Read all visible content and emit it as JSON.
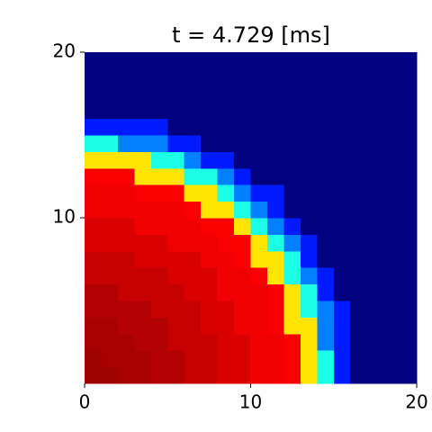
{
  "chart_data": {
    "type": "heatmap",
    "title": "t = 4.729 [ms]",
    "colormap": "jet",
    "clim": [
      0,
      100
    ],
    "xlim": [
      0,
      20
    ],
    "ylim": [
      0,
      20
    ],
    "xticks": [
      0,
      10,
      20
    ],
    "yticks": [
      10,
      20
    ],
    "z": [
      [
        97,
        97,
        96,
        96,
        95,
        95,
        93,
        93,
        91,
        91,
        89,
        89,
        88,
        65,
        40,
        15,
        0,
        0,
        0,
        0
      ],
      [
        97,
        96,
        96,
        96,
        95,
        95,
        93,
        93,
        91,
        91,
        89,
        89,
        88,
        65,
        40,
        15,
        0,
        0,
        0,
        0
      ],
      [
        96,
        96,
        96,
        95,
        95,
        93,
        93,
        93,
        91,
        91,
        89,
        89,
        88,
        65,
        25,
        15,
        0,
        0,
        0,
        0
      ],
      [
        96,
        96,
        95,
        95,
        95,
        93,
        93,
        91,
        91,
        89,
        89,
        88,
        65,
        65,
        25,
        15,
        0,
        0,
        0,
        0
      ],
      [
        95,
        95,
        95,
        95,
        93,
        93,
        93,
        91,
        91,
        89,
        89,
        88,
        65,
        40,
        25,
        15,
        0,
        0,
        0,
        0
      ],
      [
        95,
        95,
        93,
        93,
        93,
        93,
        91,
        91,
        89,
        89,
        89,
        88,
        65,
        40,
        15,
        0,
        0,
        0,
        0,
        0
      ],
      [
        93,
        93,
        93,
        93,
        93,
        91,
        91,
        91,
        89,
        89,
        88,
        65,
        40,
        25,
        15,
        0,
        0,
        0,
        0,
        0
      ],
      [
        93,
        93,
        93,
        91,
        91,
        91,
        91,
        89,
        89,
        88,
        65,
        65,
        40,
        15,
        0,
        0,
        0,
        0,
        0,
        0
      ],
      [
        91,
        91,
        91,
        91,
        91,
        89,
        89,
        89,
        88,
        88,
        65,
        40,
        25,
        15,
        0,
        0,
        0,
        0,
        0,
        0
      ],
      [
        91,
        91,
        91,
        89,
        89,
        89,
        89,
        88,
        88,
        65,
        40,
        25,
        15,
        0,
        0,
        0,
        0,
        0,
        0,
        0
      ],
      [
        89,
        89,
        89,
        89,
        89,
        89,
        88,
        65,
        65,
        40,
        25,
        15,
        0,
        0,
        0,
        0,
        0,
        0,
        0,
        0
      ],
      [
        89,
        89,
        89,
        88,
        88,
        88,
        65,
        65,
        40,
        25,
        15,
        15,
        0,
        0,
        0,
        0,
        0,
        0,
        0,
        0
      ],
      [
        88,
        88,
        88,
        65,
        65,
        65,
        40,
        40,
        25,
        15,
        0,
        0,
        0,
        0,
        0,
        0,
        0,
        0,
        0,
        0
      ],
      [
        65,
        65,
        65,
        65,
        40,
        40,
        25,
        15,
        15,
        0,
        0,
        0,
        0,
        0,
        0,
        0,
        0,
        0,
        0,
        0
      ],
      [
        40,
        40,
        25,
        25,
        25,
        15,
        15,
        0,
        0,
        0,
        0,
        0,
        0,
        0,
        0,
        0,
        0,
        0,
        0,
        0
      ],
      [
        15,
        15,
        15,
        15,
        15,
        0,
        0,
        0,
        0,
        0,
        0,
        0,
        0,
        0,
        0,
        0,
        0,
        0,
        0,
        0
      ],
      [
        0,
        0,
        0,
        0,
        0,
        0,
        0,
        0,
        0,
        0,
        0,
        0,
        0,
        0,
        0,
        0,
        0,
        0,
        0,
        0
      ],
      [
        0,
        0,
        0,
        0,
        0,
        0,
        0,
        0,
        0,
        0,
        0,
        0,
        0,
        0,
        0,
        0,
        0,
        0,
        0,
        0
      ],
      [
        0,
        0,
        0,
        0,
        0,
        0,
        0,
        0,
        0,
        0,
        0,
        0,
        0,
        0,
        0,
        0,
        0,
        0,
        0,
        0
      ],
      [
        0,
        0,
        0,
        0,
        0,
        0,
        0,
        0,
        0,
        0,
        0,
        0,
        0,
        0,
        0,
        0,
        0,
        0,
        0,
        0
      ]
    ]
  }
}
